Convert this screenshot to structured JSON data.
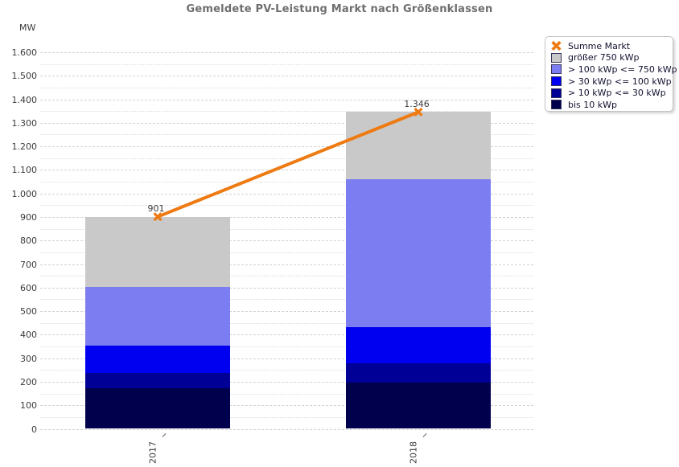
{
  "title": "Gemeldete PV-Leistung Markt nach Größenklassen",
  "y_axis": {
    "unit": "MW",
    "max": 1600,
    "major_step": 100,
    "minor_step": 50,
    "tick_labels": [
      "0",
      "100",
      "200",
      "300",
      "400",
      "500",
      "600",
      "700",
      "800",
      "900",
      "1.000",
      "1.100",
      "1.200",
      "1.300",
      "1.400",
      "1.500",
      "1.600"
    ]
  },
  "chart_data": {
    "type": "bar",
    "stacked": true,
    "title": "Gemeldete PV-Leistung Markt nach Größenklassen",
    "categories": [
      "2017",
      "2018"
    ],
    "ylabel": "MW",
    "ylim": [
      0,
      1600
    ],
    "grid": "major dashed every 100, minor dotted every 50",
    "legend_position": "top-right",
    "series": [
      {
        "name": "bis 10 kWp",
        "color": "#00004d",
        "values": [
          173,
          197
        ]
      },
      {
        "name": "> 10 kWp <= 30 kWp",
        "color": "#000096",
        "values": [
          65,
          82
        ]
      },
      {
        "name": "> 30 kWp <= 100 kWp",
        "color": "#0000f0",
        "values": [
          114,
          153
        ]
      },
      {
        "name": "> 100 kWp <= 750 kWp",
        "color": "#7d7df2",
        "values": [
          251,
          627
        ]
      },
      {
        "name": "größer 750 kWp",
        "color": "#c9c9c9",
        "values": [
          298,
          287
        ]
      }
    ],
    "line_series": {
      "name": "Summe Markt",
      "color": "#ee7a12",
      "marker": "x-icon",
      "values": [
        901,
        1346
      ],
      "labels": [
        "901",
        "1.346"
      ]
    }
  },
  "legend": {
    "items": [
      {
        "label": "Summe Markt",
        "marker": "x-icon",
        "color": "#ee7a12"
      },
      {
        "label": "größer 750 kWp",
        "marker": "swatch",
        "color": "#c9c9c9"
      },
      {
        "label": "> 100 kWp <= 750 kWp",
        "marker": "swatch",
        "color": "#7d7df2"
      },
      {
        "label": "> 30 kWp <= 100 kWp",
        "marker": "swatch",
        "color": "#0000f0"
      },
      {
        "label": "> 10 kWp <= 30 kWp",
        "marker": "swatch",
        "color": "#000096"
      },
      {
        "label": "bis 10 kWp",
        "marker": "swatch",
        "color": "#00004d"
      }
    ]
  }
}
